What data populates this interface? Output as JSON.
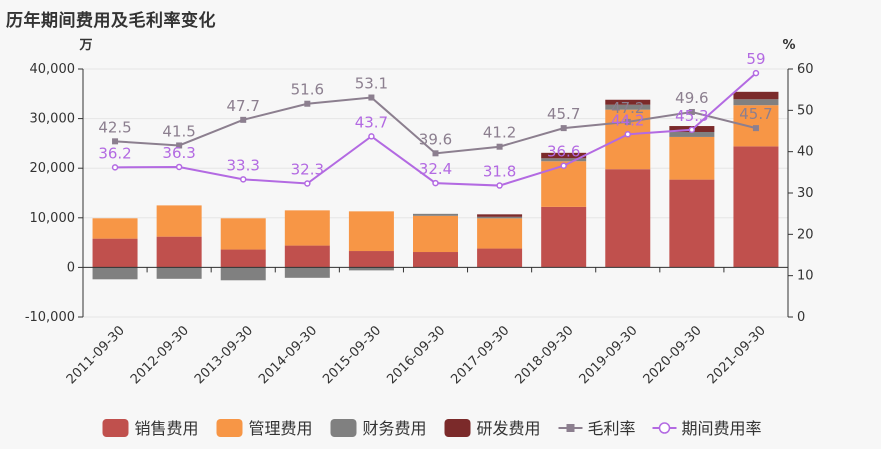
{
  "title": "历年期间费用及毛利率变化",
  "chart_data": {
    "type": "bar",
    "title": "历年期间费用及毛利率变化",
    "categories": [
      "2011-09-30",
      "2012-09-30",
      "2013-09-30",
      "2014-09-30",
      "2015-09-30",
      "2016-09-30",
      "2017-09-30",
      "2018-09-30",
      "2019-09-30",
      "2020-09-30",
      "2021-09-30"
    ],
    "y_left": {
      "unit": "万",
      "ylim": [
        -10000,
        40000
      ],
      "ticks": [
        -10000,
        0,
        10000,
        20000,
        30000,
        40000
      ],
      "tick_labels": [
        "-10,000",
        "0",
        "10,000",
        "20,000",
        "30,000",
        "40,000"
      ]
    },
    "y_right": {
      "unit": "%",
      "ylim": [
        0,
        60
      ],
      "ticks": [
        0,
        10,
        20,
        30,
        40,
        50,
        60
      ],
      "tick_labels": [
        "0",
        "10",
        "20",
        "30",
        "40",
        "50",
        "60"
      ]
    },
    "series": [
      {
        "name": "销售费用",
        "type": "bar",
        "axis": "left",
        "color": "#c0504d",
        "values": [
          5800,
          6200,
          3600,
          4400,
          3300,
          3100,
          3800,
          12200,
          19800,
          17700,
          24400
        ]
      },
      {
        "name": "管理费用",
        "type": "bar",
        "axis": "left",
        "color": "#f79646",
        "values": [
          4100,
          6300,
          6300,
          7100,
          8000,
          7300,
          6100,
          9200,
          12000,
          8600,
          8300
        ]
      },
      {
        "name": "财务费用",
        "type": "bar",
        "axis": "left",
        "color": "#808080",
        "values": [
          -2400,
          -2300,
          -2600,
          -2100,
          -600,
          400,
          300,
          600,
          1000,
          1000,
          1200
        ]
      },
      {
        "name": "研发费用",
        "type": "bar",
        "axis": "left",
        "color": "#7b2a2a",
        "values": [
          0,
          0,
          0,
          0,
          0,
          0,
          500,
          1100,
          1000,
          1200,
          1500
        ]
      },
      {
        "name": "毛利率",
        "type": "line",
        "axis": "right",
        "color": "#8c7f8f",
        "marker": "square",
        "values": [
          42.5,
          41.5,
          47.7,
          51.6,
          53.1,
          39.6,
          41.2,
          45.7,
          47.2,
          49.6,
          45.7
        ],
        "labels": [
          "42.5",
          "41.5",
          "47.7",
          "51.6",
          "53.1",
          "39.6",
          "41.2",
          "45.7",
          "47.2",
          "49.6",
          "45.7"
        ]
      },
      {
        "name": "期间费用率",
        "type": "line",
        "axis": "right",
        "color": "#b36ae2",
        "marker": "circle",
        "values": [
          36.2,
          36.3,
          33.3,
          32.3,
          43.7,
          32.4,
          31.8,
          36.6,
          44.2,
          45.3,
          59
        ],
        "labels": [
          "36.2",
          "36.3",
          "33.3",
          "32.3",
          "43.7",
          "32.4",
          "31.8",
          "36.6",
          "44.2",
          "45.3",
          "59"
        ]
      }
    ],
    "legend": [
      "销售费用",
      "管理费用",
      "财务费用",
      "研发费用",
      "毛利率",
      "期间费用率"
    ],
    "legend_position": "bottom-center",
    "grid": true
  }
}
